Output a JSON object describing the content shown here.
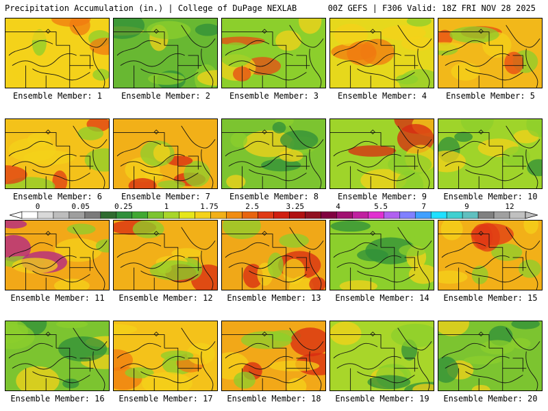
{
  "header": {
    "title": "Precipitation Accumulation (in.) | College of DuPage NEXLAB",
    "run_info": "00Z GEFS | F306 Valid: 18Z FRI NOV 28 2025"
  },
  "panels": [
    {
      "label": "Ensemble Member: 1",
      "base": "#f4d21a",
      "wet": "#f07a10"
    },
    {
      "label": "Ensemble Member: 2",
      "base": "#68b832",
      "wet": "#2f8f3a"
    },
    {
      "label": "Ensemble Member: 3",
      "base": "#8ccf2c",
      "wet": "#e84a14"
    },
    {
      "label": "Ensemble Member: 4",
      "base": "#e6d81c",
      "wet": "#f07a10"
    },
    {
      "label": "Ensemble Member: 5",
      "base": "#f2b81a",
      "wet": "#e84a14"
    },
    {
      "label": "Ensemble Member: 6",
      "base": "#f4c21a",
      "wet": "#e03a14"
    },
    {
      "label": "Ensemble Member: 7",
      "base": "#f2b018",
      "wet": "#d82a12"
    },
    {
      "label": "Ensemble Member: 8",
      "base": "#7cc430",
      "wet": "#2f8f3a"
    },
    {
      "label": "Ensemble Member: 9",
      "base": "#9fd42a",
      "wet": "#d82a12"
    },
    {
      "label": "Ensemble Member: 10",
      "base": "#9fd42a",
      "wet": "#2f8f3a"
    },
    {
      "label": "Ensemble Member: 11",
      "base": "#f2a818",
      "wet": "#b0208a"
    },
    {
      "label": "Ensemble Member: 12",
      "base": "#f2b018",
      "wet": "#d82a12"
    },
    {
      "label": "Ensemble Member: 13",
      "base": "#f0a818",
      "wet": "#d82a12"
    },
    {
      "label": "Ensemble Member: 14",
      "base": "#8ccf2c",
      "wet": "#2f8f3a"
    },
    {
      "label": "Ensemble Member: 15",
      "base": "#f2b018",
      "wet": "#e03a14"
    },
    {
      "label": "Ensemble Member: 16",
      "base": "#7cc430",
      "wet": "#2f8f3a"
    },
    {
      "label": "Ensemble Member: 17",
      "base": "#f4c21a",
      "wet": "#f07a10"
    },
    {
      "label": "Ensemble Member: 18",
      "base": "#f2a818",
      "wet": "#d82a12"
    },
    {
      "label": "Ensemble Member: 19",
      "base": "#a8d62a",
      "wet": "#2f8f3a"
    },
    {
      "label": "Ensemble Member: 20",
      "base": "#7cc430",
      "wet": "#2f8f3a"
    }
  ],
  "colorbar": {
    "tick_labels": [
      "0",
      "0.05",
      "0.25",
      "1",
      "1.75",
      "2.5",
      "3.25",
      "4",
      "5.5",
      "7",
      "9",
      "12"
    ],
    "colors": [
      "#ffffff",
      "#d9d9d9",
      "#bdbdbd",
      "#9e9e9e",
      "#7a7a7a",
      "#2f6b2f",
      "#2f8f3a",
      "#40a832",
      "#7cc430",
      "#a8d62a",
      "#e6e61a",
      "#f4d21a",
      "#f2b018",
      "#f08c10",
      "#e8640e",
      "#e03a14",
      "#d01f10",
      "#b01010",
      "#901020",
      "#800040",
      "#a01070",
      "#c020a0",
      "#e030d0",
      "#b060f0",
      "#8080ff",
      "#40a0ff",
      "#20e0ff",
      "#40d0d0",
      "#60c0c0",
      "#808080",
      "#a0a0a0",
      "#c0c0c0"
    ]
  }
}
